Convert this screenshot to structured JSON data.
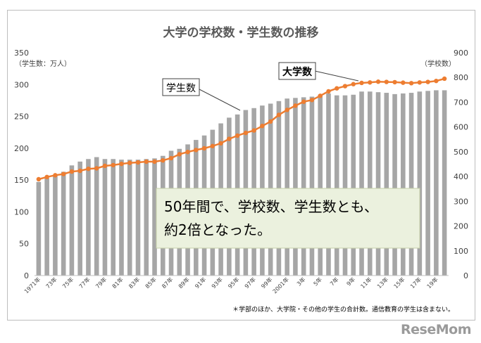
{
  "chart_data": {
    "type": "bar+line",
    "title": "大学の学校数・学生数の推移",
    "left_axis": {
      "label": "（学生数：万人）",
      "ylim": [
        0,
        350
      ],
      "ticks": [
        0,
        50,
        100,
        150,
        200,
        250,
        300,
        350
      ]
    },
    "right_axis": {
      "label": "（学校数）",
      "ylim": [
        0,
        900
      ],
      "ticks": [
        0,
        100,
        200,
        300,
        400,
        500,
        600,
        700,
        800,
        900
      ]
    },
    "x_tick_labels": [
      "1971年",
      "73年",
      "75年",
      "77年",
      "79年",
      "81年",
      "83年",
      "85年",
      "87年",
      "89年",
      "91年",
      "93年",
      "95年",
      "97年",
      "99年",
      "2001年",
      "3年",
      "5年",
      "7年",
      "9年",
      "11年",
      "13年",
      "15年",
      "17年",
      "19年"
    ],
    "years": [
      1971,
      1972,
      1973,
      1974,
      1975,
      1976,
      1977,
      1978,
      1979,
      1980,
      1981,
      1982,
      1983,
      1984,
      1985,
      1986,
      1987,
      1988,
      1989,
      1990,
      1991,
      1992,
      1993,
      1994,
      1995,
      1996,
      1997,
      1998,
      1999,
      2000,
      2001,
      2002,
      2003,
      2004,
      2005,
      2006,
      2007,
      2008,
      2009,
      2010,
      2011,
      2012,
      2013,
      2014,
      2015,
      2016,
      2017,
      2018,
      2019,
      2020
    ],
    "series": [
      {
        "name": "学生数",
        "axis": "left",
        "kind": "bar",
        "color": "#a6a6a6",
        "values": [
          147,
          153,
          157,
          163,
          173,
          179,
          183,
          186,
          183,
          183,
          182,
          182,
          182,
          183,
          184,
          188,
          196,
          199,
          206,
          213,
          220,
          229,
          239,
          248,
          253,
          260,
          263,
          267,
          270,
          274,
          278,
          279,
          280,
          281,
          284,
          286,
          283,
          283,
          284,
          289,
          289,
          288,
          287,
          285,
          286,
          287,
          289,
          290,
          291,
          291
        ]
      },
      {
        "name": "大学数",
        "axis": "right",
        "kind": "line",
        "color": "#ed7d31",
        "values": [
          389,
          398,
          405,
          410,
          420,
          423,
          431,
          433,
          443,
          446,
          451,
          455,
          457,
          460,
          460,
          465,
          474,
          490,
          499,
          507,
          514,
          523,
          534,
          552,
          565,
          576,
          586,
          604,
          622,
          649,
          669,
          686,
          702,
          709,
          726,
          744,
          756,
          765,
          773,
          778,
          780,
          783,
          782,
          781,
          779,
          777,
          780,
          782,
          786,
          795
        ]
      }
    ],
    "annotations": {
      "students_label": "学生数",
      "schools_label": "大学数",
      "callout": [
        "50年間で、学校数、学生数とも、",
        "約2倍となった。"
      ],
      "footnote": "＊学部のほか、大学院・その他の学生の合計数。通信教育の学生は含まない。"
    },
    "grid": false,
    "legend": "none"
  },
  "brand": {
    "logo": "ReseMom"
  }
}
